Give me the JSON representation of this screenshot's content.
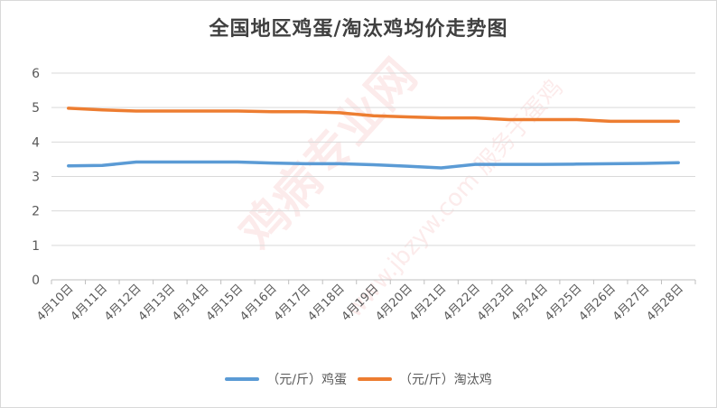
{
  "chart_data": {
    "type": "line",
    "title": "全国地区鸡蛋/淘汰鸡均价走势图",
    "xlabel": "",
    "ylabel": "",
    "ylim": [
      0,
      6
    ],
    "yticks": [
      "0",
      "1",
      "2",
      "3",
      "4",
      "5",
      "6"
    ],
    "grid": true,
    "legend_position": "bottom",
    "categories": [
      "4月10日",
      "4月11日",
      "4月12日",
      "4月13日",
      "4月14日",
      "4月15日",
      "4月16日",
      "4月17日",
      "4月18日",
      "4月19日",
      "4月20日",
      "4月21日",
      "4月22日",
      "4月23日",
      "4月24日",
      "4月25日",
      "4月26日",
      "4月27日",
      "4月28日"
    ],
    "series": [
      {
        "name": "（元/斤）鸡蛋",
        "color": "#5b9bd5",
        "values": [
          3.31,
          3.32,
          3.42,
          3.42,
          3.42,
          3.42,
          3.39,
          3.37,
          3.37,
          3.34,
          3.3,
          3.25,
          3.35,
          3.35,
          3.35,
          3.36,
          3.37,
          3.38,
          3.4
        ]
      },
      {
        "name": "（元/斤）淘汰鸡",
        "color": "#ed7d31",
        "values": [
          4.98,
          4.93,
          4.9,
          4.9,
          4.9,
          4.9,
          4.88,
          4.88,
          4.85,
          4.76,
          4.73,
          4.7,
          4.7,
          4.65,
          4.65,
          4.65,
          4.6,
          4.6,
          4.6
        ]
      }
    ]
  },
  "watermark": {
    "line1": "鸡病专业网",
    "line2": "www.jbzyw.com 服务于蛋鸡"
  }
}
